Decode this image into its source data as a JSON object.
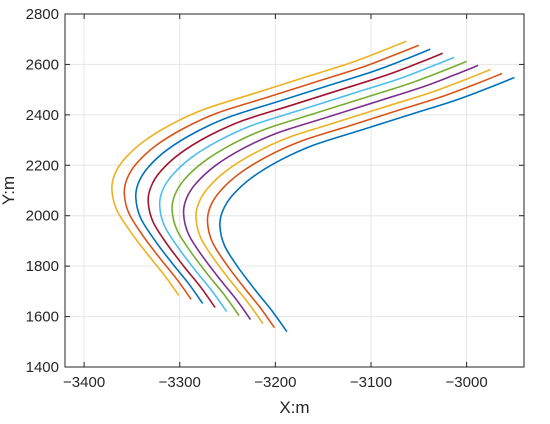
{
  "chart_data": {
    "type": "line",
    "title": "",
    "xlabel": "X:m",
    "ylabel": "Y:m",
    "xlim": [
      -3420,
      -2940
    ],
    "ylim": [
      1400,
      2800
    ],
    "xticks": [
      -3400,
      -3300,
      -3200,
      -3100,
      -3000
    ],
    "xtick_labels": [
      "−3400",
      "−3300",
      "−3200",
      "−3100",
      "−3000"
    ],
    "yticks": [
      1400,
      1600,
      1800,
      2000,
      2200,
      2400,
      2600,
      2800
    ],
    "ytick_labels": [
      "1400",
      "1600",
      "1800",
      "2000",
      "2200",
      "2400",
      "2600",
      "2800"
    ],
    "grid": true,
    "box": true,
    "legend": "none",
    "series": [
      {
        "color": "#0072BD",
        "values": [
          [
            -3188,
            1540
          ],
          [
            -3203,
            1620
          ],
          [
            -3220,
            1700
          ],
          [
            -3238,
            1790
          ],
          [
            -3253,
            1880
          ],
          [
            -3258,
            1960
          ],
          [
            -3255,
            2020
          ],
          [
            -3245,
            2080
          ],
          [
            -3225,
            2150
          ],
          [
            -3195,
            2220
          ],
          [
            -3160,
            2280
          ],
          [
            -3110,
            2340
          ],
          [
            -3060,
            2400
          ],
          [
            -3010,
            2460
          ],
          [
            -2975,
            2510
          ],
          [
            -2950,
            2548
          ]
        ]
      },
      {
        "color": "#D95319",
        "values": [
          [
            -3201,
            1556
          ],
          [
            -3216,
            1636
          ],
          [
            -3233,
            1716
          ],
          [
            -3251,
            1806
          ],
          [
            -3266,
            1896
          ],
          [
            -3271,
            1976
          ],
          [
            -3268,
            2036
          ],
          [
            -3258,
            2096
          ],
          [
            -3238,
            2166
          ],
          [
            -3208,
            2236
          ],
          [
            -3173,
            2296
          ],
          [
            -3123,
            2356
          ],
          [
            -3073,
            2416
          ],
          [
            -3023,
            2476
          ],
          [
            -2988,
            2526
          ],
          [
            -2963,
            2564
          ]
        ]
      },
      {
        "color": "#EDB120",
        "values": [
          [
            -3213,
            1572
          ],
          [
            -3228,
            1652
          ],
          [
            -3245,
            1732
          ],
          [
            -3263,
            1822
          ],
          [
            -3278,
            1912
          ],
          [
            -3283,
            1992
          ],
          [
            -3280,
            2052
          ],
          [
            -3270,
            2112
          ],
          [
            -3250,
            2182
          ],
          [
            -3220,
            2252
          ],
          [
            -3185,
            2312
          ],
          [
            -3135,
            2372
          ],
          [
            -3085,
            2432
          ],
          [
            -3035,
            2492
          ],
          [
            -3000,
            2542
          ],
          [
            -2975,
            2580
          ]
        ]
      },
      {
        "color": "#7E2F8E",
        "values": [
          [
            -3226,
            1588
          ],
          [
            -3241,
            1668
          ],
          [
            -3258,
            1748
          ],
          [
            -3276,
            1838
          ],
          [
            -3291,
            1928
          ],
          [
            -3296,
            2008
          ],
          [
            -3293,
            2068
          ],
          [
            -3283,
            2128
          ],
          [
            -3263,
            2198
          ],
          [
            -3233,
            2268
          ],
          [
            -3198,
            2328
          ],
          [
            -3148,
            2388
          ],
          [
            -3098,
            2448
          ],
          [
            -3048,
            2508
          ],
          [
            -3013,
            2558
          ],
          [
            -2988,
            2596
          ]
        ]
      },
      {
        "color": "#77AC30",
        "values": [
          [
            -3238,
            1604
          ],
          [
            -3253,
            1684
          ],
          [
            -3270,
            1764
          ],
          [
            -3288,
            1854
          ],
          [
            -3303,
            1944
          ],
          [
            -3308,
            2024
          ],
          [
            -3305,
            2084
          ],
          [
            -3295,
            2144
          ],
          [
            -3275,
            2214
          ],
          [
            -3245,
            2284
          ],
          [
            -3210,
            2344
          ],
          [
            -3160,
            2404
          ],
          [
            -3110,
            2464
          ],
          [
            -3060,
            2524
          ],
          [
            -3025,
            2574
          ],
          [
            -3000,
            2612
          ]
        ]
      },
      {
        "color": "#4DBEEE",
        "values": [
          [
            -3251,
            1620
          ],
          [
            -3266,
            1700
          ],
          [
            -3283,
            1780
          ],
          [
            -3301,
            1870
          ],
          [
            -3316,
            1960
          ],
          [
            -3321,
            2040
          ],
          [
            -3318,
            2100
          ],
          [
            -3308,
            2160
          ],
          [
            -3288,
            2230
          ],
          [
            -3258,
            2300
          ],
          [
            -3223,
            2360
          ],
          [
            -3173,
            2420
          ],
          [
            -3123,
            2480
          ],
          [
            -3073,
            2540
          ],
          [
            -3038,
            2590
          ],
          [
            -3013,
            2628
          ]
        ]
      },
      {
        "color": "#A2142F",
        "values": [
          [
            -3263,
            1636
          ],
          [
            -3278,
            1716
          ],
          [
            -3295,
            1796
          ],
          [
            -3313,
            1886
          ],
          [
            -3328,
            1976
          ],
          [
            -3333,
            2056
          ],
          [
            -3330,
            2116
          ],
          [
            -3320,
            2176
          ],
          [
            -3300,
            2246
          ],
          [
            -3270,
            2316
          ],
          [
            -3235,
            2376
          ],
          [
            -3185,
            2436
          ],
          [
            -3135,
            2496
          ],
          [
            -3085,
            2556
          ],
          [
            -3050,
            2606
          ],
          [
            -3025,
            2644
          ]
        ]
      },
      {
        "color": "#0072BD",
        "values": [
          [
            -3276,
            1652
          ],
          [
            -3291,
            1732
          ],
          [
            -3308,
            1812
          ],
          [
            -3326,
            1902
          ],
          [
            -3341,
            1992
          ],
          [
            -3346,
            2072
          ],
          [
            -3343,
            2132
          ],
          [
            -3333,
            2192
          ],
          [
            -3313,
            2262
          ],
          [
            -3283,
            2332
          ],
          [
            -3248,
            2392
          ],
          [
            -3198,
            2452
          ],
          [
            -3148,
            2512
          ],
          [
            -3098,
            2572
          ],
          [
            -3063,
            2622
          ],
          [
            -3038,
            2660
          ]
        ]
      },
      {
        "color": "#D95319",
        "values": [
          [
            -3288,
            1668
          ],
          [
            -3303,
            1748
          ],
          [
            -3320,
            1828
          ],
          [
            -3338,
            1918
          ],
          [
            -3353,
            2008
          ],
          [
            -3358,
            2088
          ],
          [
            -3355,
            2148
          ],
          [
            -3345,
            2208
          ],
          [
            -3325,
            2278
          ],
          [
            -3295,
            2348
          ],
          [
            -3260,
            2408
          ],
          [
            -3210,
            2468
          ],
          [
            -3160,
            2528
          ],
          [
            -3110,
            2588
          ],
          [
            -3075,
            2638
          ],
          [
            -3050,
            2676
          ]
        ]
      },
      {
        "color": "#EDB120",
        "values": [
          [
            -3301,
            1684
          ],
          [
            -3316,
            1764
          ],
          [
            -3333,
            1844
          ],
          [
            -3351,
            1934
          ],
          [
            -3366,
            2024
          ],
          [
            -3371,
            2104
          ],
          [
            -3368,
            2164
          ],
          [
            -3358,
            2224
          ],
          [
            -3338,
            2294
          ],
          [
            -3308,
            2364
          ],
          [
            -3273,
            2424
          ],
          [
            -3223,
            2484
          ],
          [
            -3173,
            2544
          ],
          [
            -3123,
            2604
          ],
          [
            -3088,
            2654
          ],
          [
            -3063,
            2692
          ]
        ]
      }
    ]
  }
}
